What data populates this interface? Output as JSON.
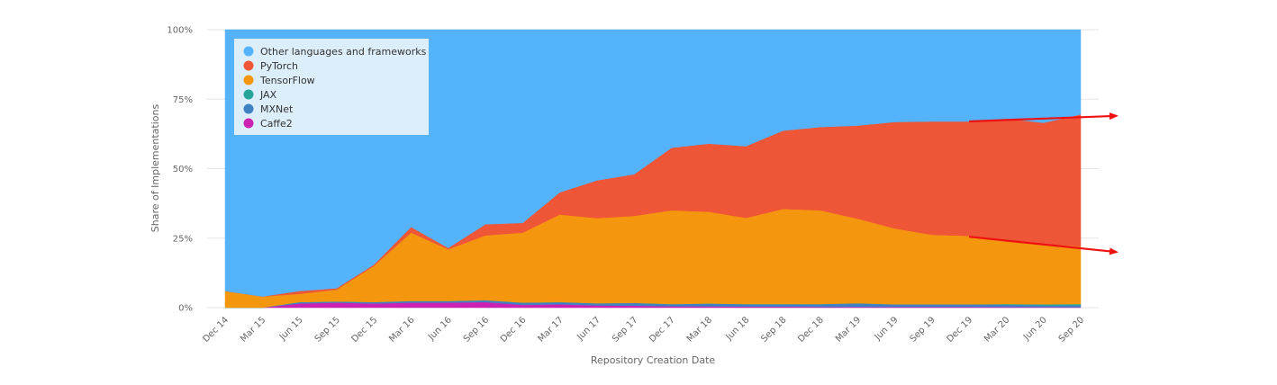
{
  "chart_data": {
    "type": "area",
    "stacked": true,
    "normalized": true,
    "xlabel": "Repository Creation Date",
    "ylabel": "Share of Implementations",
    "ylim": [
      0,
      100
    ],
    "y_ticks": [
      "0%",
      "25%",
      "50%",
      "75%",
      "100%"
    ],
    "grid": true,
    "legend_position": "top-left",
    "categories": [
      "Dec 14",
      "Mar 15",
      "Jun 15",
      "Sep 15",
      "Dec 15",
      "Mar 16",
      "Jun 16",
      "Sep 16",
      "Dec 16",
      "Mar 17",
      "Jun 17",
      "Sep 17",
      "Dec 17",
      "Mar 18",
      "Jun 18",
      "Sep 18",
      "Dec 18",
      "Mar 19",
      "Jun 19",
      "Sep 19",
      "Dec 19",
      "Mar 20",
      "Jun 20",
      "Sep 20"
    ],
    "series": [
      {
        "name": "Caffe2",
        "color": "#cc22b4",
        "values": [
          0,
          0,
          1.5,
          1.8,
          1.5,
          1.8,
          1.8,
          2.0,
          1.0,
          1.2,
          0.8,
          0.7,
          0.5,
          0.5,
          0.4,
          0.4,
          0.3,
          0.3,
          0.3,
          0.3,
          0.3,
          0.3,
          0.2,
          0.2
        ]
      },
      {
        "name": "MXNet",
        "color": "#3f82c4",
        "values": [
          0,
          0,
          0.5,
          0.4,
          0.5,
          0.6,
          0.6,
          0.7,
          0.8,
          0.8,
          0.8,
          1.0,
          0.8,
          1.0,
          0.9,
          0.9,
          1.0,
          1.3,
          0.9,
          0.9,
          0.9,
          0.8,
          0.6,
          0.6
        ]
      },
      {
        "name": "JAX",
        "color": "#26a69a",
        "values": [
          0,
          0,
          0,
          0,
          0,
          0,
          0,
          0,
          0,
          0,
          0,
          0,
          0,
          0,
          0,
          0,
          0,
          0,
          0,
          0,
          0,
          0.2,
          0.4,
          0.5
        ]
      },
      {
        "name": "TensorFlow",
        "color": "#f5970e",
        "values": [
          6,
          4,
          3.0,
          4.3,
          13,
          24.6,
          18.6,
          23.3,
          25.2,
          31.5,
          30.6,
          31.3,
          33.7,
          33.0,
          31.0,
          34.2,
          33.7,
          30.4,
          27.3,
          25.0,
          24.6,
          22.5,
          21.8,
          20.7
        ]
      },
      {
        "name": "PyTorch",
        "color": "#ef5537",
        "values": [
          0,
          0,
          1.0,
          0.5,
          0.5,
          2.0,
          0.5,
          4.0,
          3.5,
          8.0,
          13.6,
          15.0,
          22.5,
          24.5,
          25.8,
          28.2,
          30.0,
          33.5,
          38.3,
          40.8,
          41.2,
          44.2,
          43.5,
          47.5
        ]
      },
      {
        "name": "Other languages and frameworks",
        "color": "#54b3fb",
        "values": [
          94,
          96,
          94.0,
          93.0,
          84.5,
          71.0,
          78.5,
          70.0,
          69.5,
          58.5,
          54.2,
          52.0,
          42.5,
          41.0,
          41.9,
          36.3,
          35.0,
          34.5,
          33.2,
          33.0,
          33.0,
          32.0,
          33.5,
          30.5
        ]
      }
    ],
    "annotations": [
      {
        "type": "arrow",
        "color": "#ee1111",
        "from": [
          "Dec 19",
          67
        ],
        "to_end_of_axis": 69
      },
      {
        "type": "arrow",
        "color": "#ee1111",
        "from": [
          "Dec 19",
          25.5
        ],
        "to_end_of_axis": 20
      }
    ]
  },
  "legend": {
    "items": [
      {
        "label": "Other languages and frameworks",
        "color": "#54b3fb"
      },
      {
        "label": "PyTorch",
        "color": "#ef5537"
      },
      {
        "label": "TensorFlow",
        "color": "#f5970e"
      },
      {
        "label": "JAX",
        "color": "#26a69a"
      },
      {
        "label": "MXNet",
        "color": "#3f82c4"
      },
      {
        "label": "Caffe2",
        "color": "#cc22b4"
      }
    ]
  }
}
